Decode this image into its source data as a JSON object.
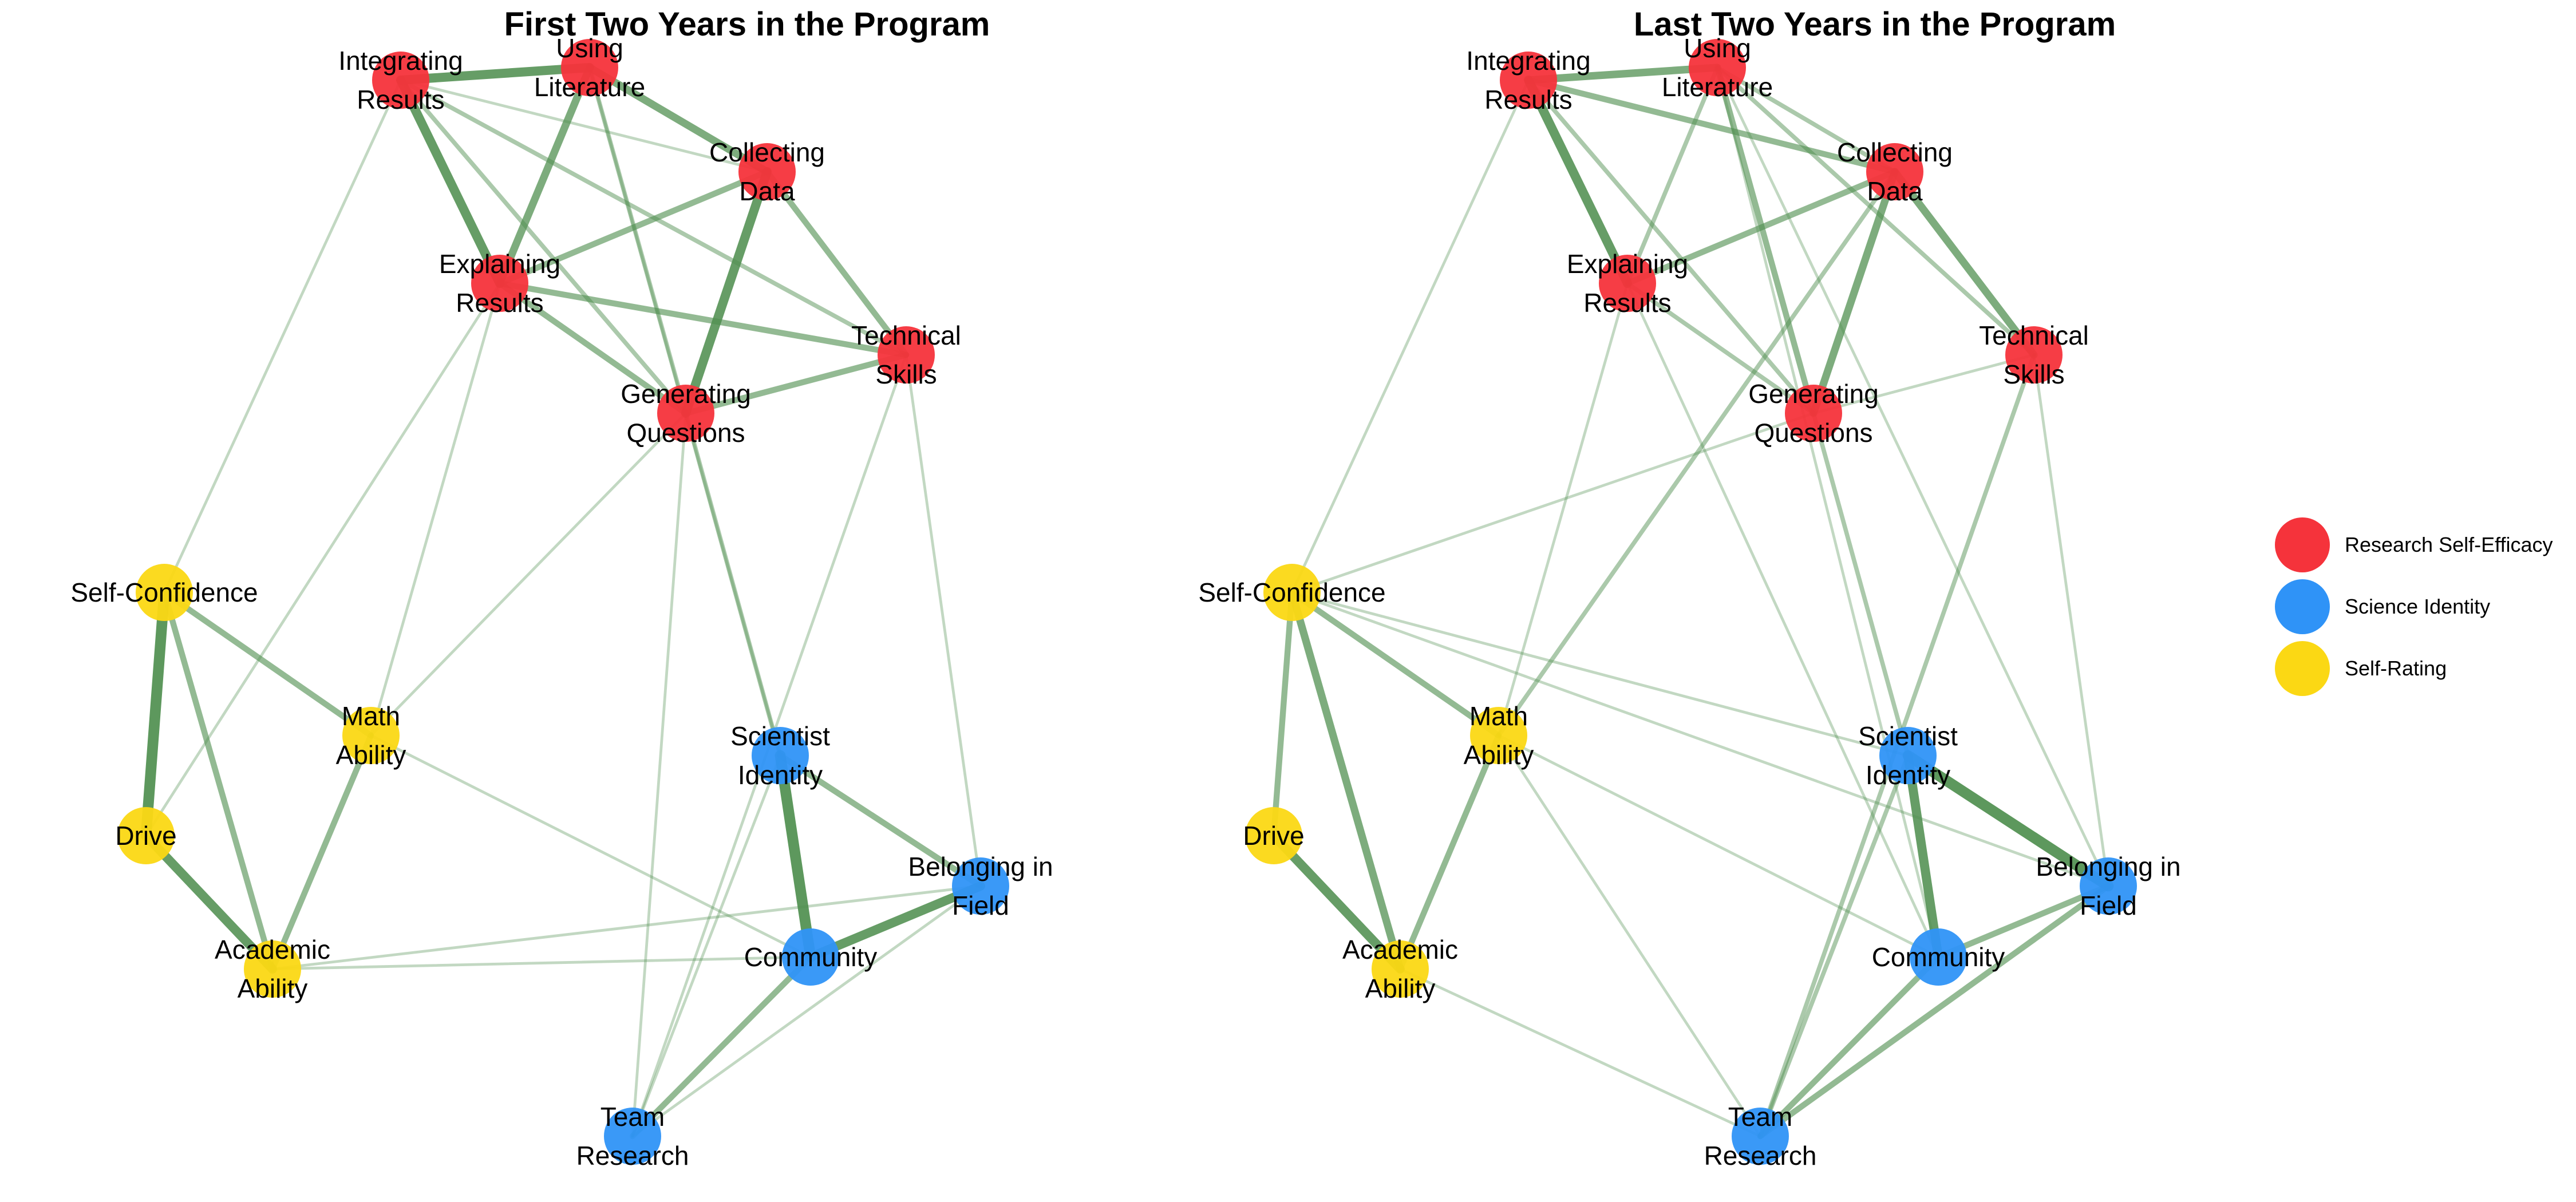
{
  "panels": [
    {
      "id": "first",
      "title": "First Two Years in the Program"
    },
    {
      "id": "last",
      "title": "Last Two Years in the Program"
    }
  ],
  "colors": {
    "edge": "#4f8f4f",
    "Research Self-Efficacy": "#f5333b",
    "Science Identity": "#2f93f7",
    "Self-Rating": "#fbd814"
  },
  "legend": [
    {
      "label": "Research Self-Efficacy",
      "group": "Research Self-Efficacy"
    },
    {
      "label": "Science Identity",
      "group": "Science Identity"
    },
    {
      "label": "Self-Rating",
      "group": "Self-Rating"
    }
  ],
  "nodes": [
    {
      "id": "integrating",
      "lines": [
        "Integrating",
        "Results"
      ],
      "group": "Research Self-Efficacy"
    },
    {
      "id": "literature",
      "lines": [
        "Using",
        "Literature"
      ],
      "group": "Research Self-Efficacy"
    },
    {
      "id": "collecting",
      "lines": [
        "Collecting",
        "Data"
      ],
      "group": "Research Self-Efficacy"
    },
    {
      "id": "explaining",
      "lines": [
        "Explaining",
        "Results"
      ],
      "group": "Research Self-Efficacy"
    },
    {
      "id": "technical",
      "lines": [
        "Technical",
        "Skills"
      ],
      "group": "Research Self-Efficacy"
    },
    {
      "id": "generating",
      "lines": [
        "Generating",
        "Questions"
      ],
      "group": "Research Self-Efficacy"
    },
    {
      "id": "selfconf",
      "lines": [
        "Self-Confidence"
      ],
      "group": "Self-Rating"
    },
    {
      "id": "math",
      "lines": [
        "Math",
        "Ability"
      ],
      "group": "Self-Rating"
    },
    {
      "id": "drive",
      "lines": [
        "Drive"
      ],
      "group": "Self-Rating"
    },
    {
      "id": "academic",
      "lines": [
        "Academic",
        "Ability"
      ],
      "group": "Self-Rating"
    },
    {
      "id": "scientist",
      "lines": [
        "Scientist",
        "Identity"
      ],
      "group": "Science Identity"
    },
    {
      "id": "belonging",
      "lines": [
        "Belonging in",
        "Field"
      ],
      "group": "Science Identity"
    },
    {
      "id": "community",
      "lines": [
        "Community"
      ],
      "group": "Science Identity"
    },
    {
      "id": "team",
      "lines": [
        "Team",
        "Research"
      ],
      "group": "Science Identity"
    }
  ],
  "edges": {
    "first": [
      [
        "integrating",
        "literature",
        5
      ],
      [
        "integrating",
        "explaining",
        5
      ],
      [
        "literature",
        "collecting",
        4
      ],
      [
        "literature",
        "explaining",
        4
      ],
      [
        "collecting",
        "generating",
        5
      ],
      [
        "generating",
        "technical",
        3
      ],
      [
        "explaining",
        "technical",
        3
      ],
      [
        "explaining",
        "generating",
        3
      ],
      [
        "collecting",
        "explaining",
        3
      ],
      [
        "collecting",
        "technical",
        3
      ],
      [
        "literature",
        "generating",
        2
      ],
      [
        "integrating",
        "generating",
        2
      ],
      [
        "integrating",
        "technical",
        2
      ],
      [
        "integrating",
        "collecting",
        1
      ],
      [
        "literature",
        "scientist",
        1
      ],
      [
        "selfconf",
        "drive",
        6
      ],
      [
        "selfconf",
        "academic",
        3
      ],
      [
        "selfconf",
        "math",
        3
      ],
      [
        "drive",
        "academic",
        5
      ],
      [
        "math",
        "academic",
        3
      ],
      [
        "scientist",
        "community",
        6
      ],
      [
        "scientist",
        "belonging",
        3
      ],
      [
        "community",
        "belonging",
        5
      ],
      [
        "community",
        "team",
        3
      ],
      [
        "generating",
        "scientist",
        2
      ],
      [
        "generating",
        "team",
        1
      ],
      [
        "technical",
        "team",
        1
      ],
      [
        "technical",
        "belonging",
        1
      ],
      [
        "explaining",
        "math",
        1
      ],
      [
        "explaining",
        "drive",
        1
      ],
      [
        "integrating",
        "selfconf",
        1
      ],
      [
        "math",
        "generating",
        1
      ],
      [
        "scientist",
        "team",
        1
      ],
      [
        "team",
        "belonging",
        1
      ],
      [
        "academic",
        "community",
        1
      ],
      [
        "academic",
        "belonging",
        1
      ],
      [
        "math",
        "community",
        1
      ]
    ],
    "last": [
      [
        "integrating",
        "literature",
        4
      ],
      [
        "integrating",
        "explaining",
        5
      ],
      [
        "literature",
        "explaining",
        2
      ],
      [
        "literature",
        "collecting",
        2
      ],
      [
        "literature",
        "technical",
        2
      ],
      [
        "literature",
        "generating",
        3
      ],
      [
        "collecting",
        "technical",
        4
      ],
      [
        "collecting",
        "generating",
        4
      ],
      [
        "collecting",
        "explaining",
        3
      ],
      [
        "integrating",
        "collecting",
        3
      ],
      [
        "integrating",
        "generating",
        2
      ],
      [
        "explaining",
        "generating",
        2
      ],
      [
        "generating",
        "technical",
        1
      ],
      [
        "generating",
        "scientist",
        2
      ],
      [
        "selfconf",
        "drive",
        3
      ],
      [
        "selfconf",
        "academic",
        4
      ],
      [
        "selfconf",
        "math",
        3
      ],
      [
        "drive",
        "academic",
        5
      ],
      [
        "math",
        "academic",
        3
      ],
      [
        "scientist",
        "community",
        5
      ],
      [
        "scientist",
        "belonging",
        6
      ],
      [
        "community",
        "belonging",
        3
      ],
      [
        "community",
        "team",
        3
      ],
      [
        "team",
        "belonging",
        3
      ],
      [
        "scientist",
        "team",
        2
      ],
      [
        "technical",
        "team",
        2
      ],
      [
        "technical",
        "belonging",
        1
      ],
      [
        "collecting",
        "math",
        2
      ],
      [
        "explaining",
        "math",
        1
      ],
      [
        "explaining",
        "community",
        1
      ],
      [
        "academic",
        "team",
        1
      ],
      [
        "selfconf",
        "belonging",
        1
      ],
      [
        "selfconf",
        "scientist",
        1
      ],
      [
        "selfconf",
        "generating",
        1
      ],
      [
        "math",
        "community",
        1
      ],
      [
        "literature",
        "community",
        1
      ],
      [
        "literature",
        "belonging",
        1
      ],
      [
        "integrating",
        "selfconf",
        1
      ],
      [
        "math",
        "team",
        1
      ]
    ]
  }
}
